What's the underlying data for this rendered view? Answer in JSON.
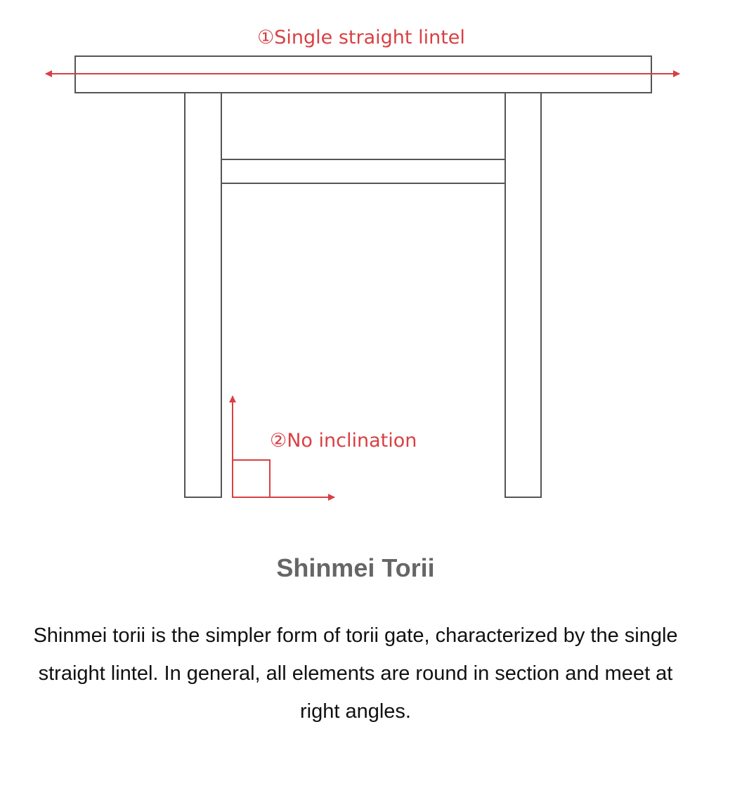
{
  "diagram": {
    "label_lintel": "①Single straight lintel",
    "label_inclination": "②No inclination",
    "colors": {
      "structure": "#555555",
      "annotation": "#d94043"
    }
  },
  "caption": {
    "title": "Shinmei Torii",
    "description": "Shinmei torii is the simpler form of torii gate, characterized by the single straight lintel. In general, all elements are round in section and meet at right angles."
  }
}
